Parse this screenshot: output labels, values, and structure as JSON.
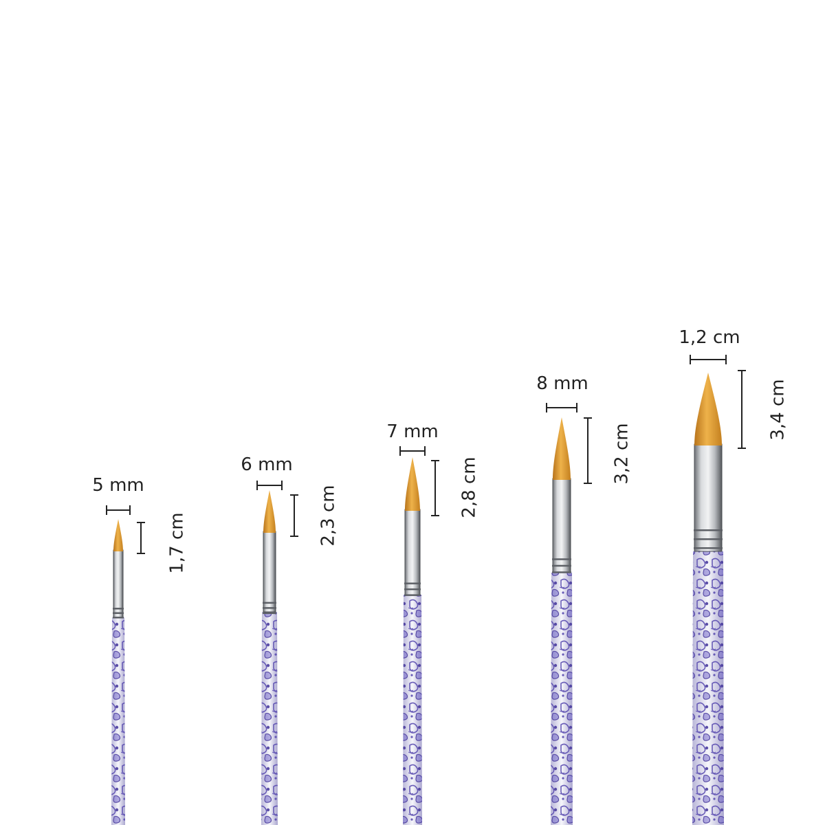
{
  "colors": {
    "background": "#ffffff",
    "bristle": "#e3a23a",
    "bristle_dark": "#c47d1e",
    "ferrule": "#b9bcc0",
    "handle_base": "#eeeef6",
    "handle_pattern": "#5a4cb0",
    "dimension_ink": "#222222"
  },
  "brushes": [
    {
      "id": "brush-1",
      "width_label": "5 mm",
      "length_label": "1,7 cm"
    },
    {
      "id": "brush-2",
      "width_label": "6 mm",
      "length_label": "2,3 cm"
    },
    {
      "id": "brush-3",
      "width_label": "7 mm",
      "length_label": "2,8 cm"
    },
    {
      "id": "brush-4",
      "width_label": "8 mm",
      "length_label": "3,2 cm"
    },
    {
      "id": "brush-5",
      "width_label": "1,2 cm",
      "length_label": "3,4 cm"
    }
  ]
}
